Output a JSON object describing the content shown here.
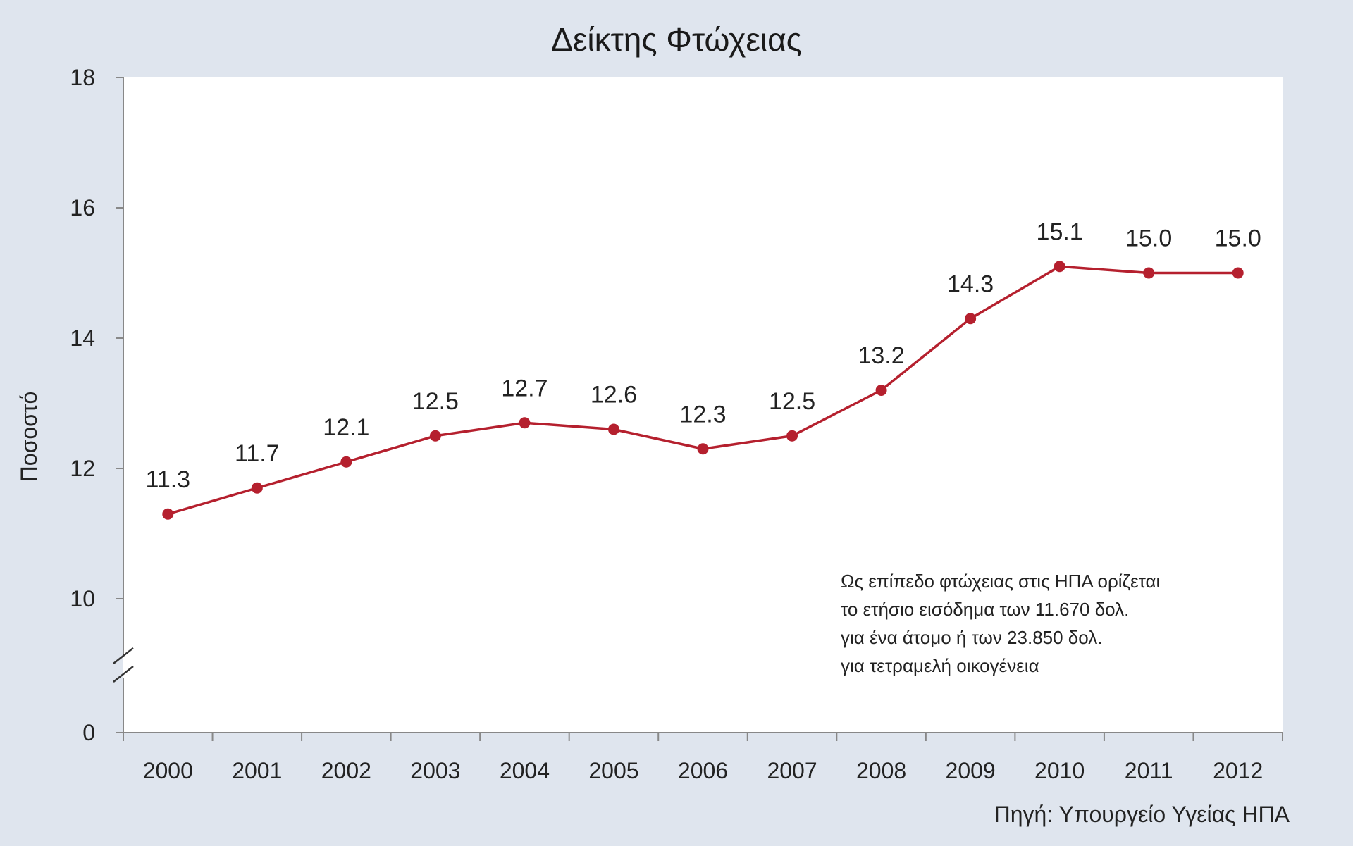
{
  "chart_data": {
    "type": "line",
    "title": "Δείκτης Φτώχειας",
    "ylabel": "Ποσοστό",
    "xlabel": "",
    "categories": [
      "2000",
      "2001",
      "2002",
      "2003",
      "2004",
      "2005",
      "2006",
      "2007",
      "2008",
      "2009",
      "2010",
      "2011",
      "2012"
    ],
    "series": [
      {
        "values": [
          11.3,
          11.7,
          12.1,
          12.5,
          12.7,
          12.6,
          12.3,
          12.5,
          13.2,
          14.3,
          15.1,
          15.0,
          15.0
        ],
        "labels": [
          "11.3",
          "11.7",
          "12.1",
          "12.5",
          "12.7",
          "12.6",
          "12.3",
          "12.5",
          "13.2",
          "14.3",
          "15.1",
          "15.0",
          "15.0"
        ],
        "color": "#b5202e"
      }
    ],
    "yticks": [
      "0",
      "10",
      "12",
      "14",
      "16",
      "18"
    ],
    "ylim": [
      10,
      18
    ],
    "axis_break": true,
    "grid": false,
    "annotation_lines": [
      "Ως επίπεδο φτώχειας στις ΗΠΑ ορίζεται",
      "το ετήσιο εισόδημα των 11.670 δολ.",
      "για ένα άτομο ή των 23.850 δολ.",
      "για τετραμελή οικογένεια"
    ],
    "source": "Πηγή: Υπουργείο Υγείας ΗΠΑ",
    "colors": {
      "background": "#dfe5ee",
      "plot_area": "#ffffff",
      "line": "#b5202e"
    }
  }
}
